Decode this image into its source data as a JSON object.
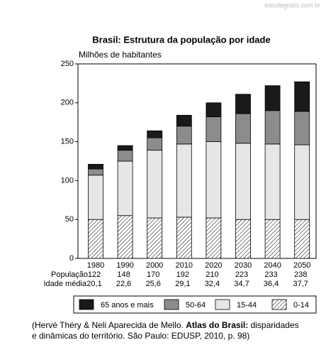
{
  "watermark": "estudegratis.com.br",
  "chart_data": {
    "type": "bar",
    "stacked": true,
    "title": "Brasil: Estrutura da população por idade",
    "y_label": "Milhões de habitantes",
    "categories": [
      "1980",
      "1990",
      "2000",
      "2010",
      "2020",
      "2030",
      "2040",
      "2050"
    ],
    "series": [
      {
        "name": "0-14",
        "color": "#ffffff",
        "pattern": "hatch",
        "values": [
          50,
          55,
          52,
          53,
          52,
          50,
          50,
          50
        ]
      },
      {
        "name": "15-44",
        "color": "#e6e6e6",
        "values": [
          57,
          70,
          87,
          94,
          98,
          98,
          97,
          96
        ]
      },
      {
        "name": "50-64",
        "color": "#8c8c8c",
        "values": [
          8,
          14,
          16,
          23,
          32,
          38,
          43,
          43
        ]
      },
      {
        "name": "65 anos e mais",
        "color": "#1a1a1a",
        "values": [
          6,
          6,
          9,
          14,
          18,
          25,
          32,
          38
        ]
      }
    ],
    "ylim": [
      0,
      250
    ],
    "yticks": [
      0,
      50,
      100,
      150,
      200,
      250
    ],
    "grid": false,
    "table_rows": [
      {
        "label": "População",
        "values": [
          122,
          148,
          170,
          192,
          210,
          223,
          233,
          238
        ]
      },
      {
        "label": "Idade média",
        "values": [
          20.1,
          22.6,
          25.6,
          29.1,
          32.4,
          34.7,
          36.4,
          37.7
        ],
        "value_labels": [
          "20,1",
          "22,6",
          "25,6",
          "29,1",
          "32,4",
          "34,7",
          "36,4",
          "37,7"
        ]
      }
    ]
  },
  "source": {
    "lines": [
      [
        {
          "text": "(Hervé Théry & Neli Aparecida de Mello. ",
          "bold": false
        },
        {
          "text": "Atlas do Brasil:",
          "bold": true
        },
        {
          "text": " disparidades",
          "bold": false
        }
      ],
      [
        {
          "text": "e dinâmicas do território. São Paulo: EDUSP, 2010, p. 98)",
          "bold": false
        }
      ]
    ]
  }
}
